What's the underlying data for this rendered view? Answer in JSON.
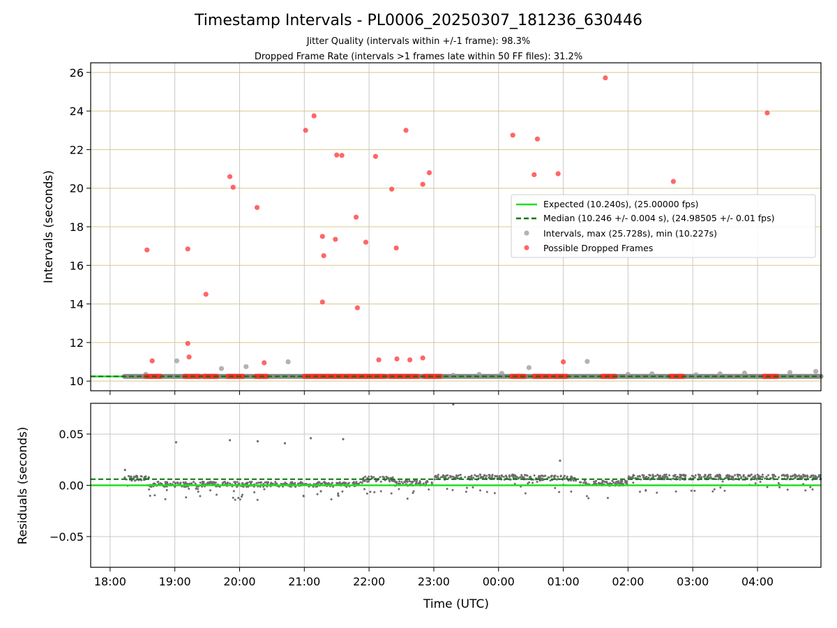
{
  "chart_data": [
    {
      "type": "scatter",
      "title": "Timestamp Intervals - PL0006_20250307_181236_630446",
      "subtitle_lines": [
        "Jitter Quality (intervals within +/-1 frame): 98.3%",
        "Dropped Frame Rate (intervals >1 frames late within 50 FF files): 31.2%"
      ],
      "ylabel": "Intervals (seconds)",
      "xlim_hours": [
        17.7,
        28.98
      ],
      "ylim": [
        9.5,
        26.5
      ],
      "yticks": [
        10,
        12,
        14,
        16,
        18,
        20,
        22,
        24,
        26
      ],
      "ytick_labels": [
        "10",
        "12",
        "14",
        "16",
        "18",
        "20",
        "22",
        "24",
        "26"
      ],
      "grid": true,
      "y_gridline_color": "#d8c88c",
      "legend_position": "center-right",
      "legend": [
        {
          "label": "Expected (10.240s), (25.00000 fps)",
          "kind": "solid-line",
          "color": "#22dd22"
        },
        {
          "label": "Median (10.246 +/- 0.004 s), (24.98505 +/- 0.01 fps)",
          "kind": "dashed-line",
          "color": "#007700"
        },
        {
          "label": "Intervals, max (25.728s), min (10.227s)",
          "kind": "marker",
          "color": "#999999"
        },
        {
          "label": "Possible Dropped Frames",
          "kind": "marker",
          "color": "#ff4040"
        }
      ],
      "expected_interval": 10.24,
      "median_interval": 10.246,
      "interval_line_range_hours": [
        18.22,
        28.98
      ],
      "dropped_frames": [
        [
          18.57,
          16.8
        ],
        [
          18.65,
          11.05
        ],
        [
          19.2,
          16.85
        ],
        [
          19.2,
          11.95
        ],
        [
          19.22,
          11.25
        ],
        [
          19.48,
          14.5
        ],
        [
          19.85,
          20.6
        ],
        [
          19.9,
          20.05
        ],
        [
          20.27,
          19.0
        ],
        [
          20.38,
          10.95
        ],
        [
          21.02,
          23.0
        ],
        [
          21.15,
          23.75
        ],
        [
          21.28,
          17.5
        ],
        [
          21.3,
          16.5
        ],
        [
          21.28,
          14.1
        ],
        [
          21.48,
          17.35
        ],
        [
          21.5,
          21.72
        ],
        [
          21.58,
          21.7
        ],
        [
          21.8,
          18.5
        ],
        [
          21.82,
          13.8
        ],
        [
          21.95,
          17.2
        ],
        [
          22.1,
          21.65
        ],
        [
          22.15,
          11.1
        ],
        [
          22.35,
          19.95
        ],
        [
          22.42,
          16.9
        ],
        [
          22.43,
          11.15
        ],
        [
          22.57,
          23.0
        ],
        [
          22.63,
          11.1
        ],
        [
          22.83,
          20.2
        ],
        [
          22.83,
          11.2
        ],
        [
          22.93,
          20.8
        ],
        [
          24.22,
          22.75
        ],
        [
          24.55,
          20.7
        ],
        [
          24.6,
          22.55
        ],
        [
          24.92,
          20.75
        ],
        [
          25.0,
          11.0
        ],
        [
          25.65,
          25.72
        ],
        [
          26.7,
          20.35
        ],
        [
          28.15,
          23.9
        ]
      ],
      "dropped_cluster_ranges_hours": [
        [
          18.55,
          18.78
        ],
        [
          19.15,
          19.38
        ],
        [
          19.45,
          19.65
        ],
        [
          19.82,
          20.05
        ],
        [
          20.25,
          20.42
        ],
        [
          21.0,
          21.95
        ],
        [
          21.95,
          22.25
        ],
        [
          22.32,
          22.75
        ],
        [
          22.85,
          23.1
        ],
        [
          24.2,
          24.4
        ],
        [
          24.55,
          24.8
        ],
        [
          24.85,
          25.05
        ],
        [
          25.6,
          25.8
        ],
        [
          26.65,
          26.85
        ],
        [
          28.1,
          28.3
        ]
      ],
      "gray_outliers": [
        [
          18.55,
          10.35
        ],
        [
          19.03,
          11.05
        ],
        [
          19.72,
          10.65
        ],
        [
          20.1,
          10.75
        ],
        [
          20.75,
          11.0
        ],
        [
          23.3,
          10.3
        ],
        [
          23.7,
          10.35
        ],
        [
          24.05,
          10.4
        ],
        [
          24.47,
          10.7
        ],
        [
          25.37,
          11.02
        ],
        [
          26.0,
          10.35
        ],
        [
          26.37,
          10.38
        ],
        [
          27.05,
          10.33
        ],
        [
          27.42,
          10.38
        ],
        [
          27.8,
          10.42
        ],
        [
          28.5,
          10.45
        ],
        [
          28.9,
          10.5
        ]
      ]
    },
    {
      "type": "scatter",
      "xlabel": "Time (UTC)",
      "ylabel": "Residuals (seconds)",
      "xlim_hours": [
        17.7,
        28.98
      ],
      "ylim": [
        -0.08,
        0.08
      ],
      "yticks": [
        -0.05,
        0.0,
        0.05
      ],
      "ytick_labels": [
        "−0.05",
        "0.00",
        "0.05"
      ],
      "xticks_hours": [
        18,
        19,
        20,
        21,
        22,
        23,
        24,
        25,
        26,
        27,
        28
      ],
      "xtick_labels": [
        "18:00",
        "19:00",
        "20:00",
        "21:00",
        "22:00",
        "23:00",
        "00:00",
        "01:00",
        "02:00",
        "03:00",
        "04:00"
      ],
      "grid": true,
      "expected_residual": 0.0,
      "median_residual": 0.006,
      "residual_outliers": [
        [
          18.23,
          0.015
        ],
        [
          19.02,
          0.042
        ],
        [
          19.85,
          0.044
        ],
        [
          20.28,
          0.043
        ],
        [
          20.7,
          0.041
        ],
        [
          21.1,
          0.046
        ],
        [
          21.6,
          0.045
        ],
        [
          23.3,
          0.079
        ],
        [
          24.95,
          0.024
        ]
      ],
      "residual_levels": [
        {
          "range_hours": [
            18.22,
            18.6
          ],
          "level": 0.007
        },
        {
          "range_hours": [
            18.6,
            21.9
          ],
          "level": 0.001
        },
        {
          "range_hours": [
            21.9,
            22.4
          ],
          "level": 0.006
        },
        {
          "range_hours": [
            22.4,
            23.0
          ],
          "level": 0.002
        },
        {
          "range_hours": [
            23.0,
            24.6
          ],
          "level": 0.008
        },
        {
          "range_hours": [
            24.6,
            25.2
          ],
          "level": 0.007
        },
        {
          "range_hours": [
            25.2,
            26.0
          ],
          "level": 0.002
        },
        {
          "range_hours": [
            26.0,
            28.98
          ],
          "level": 0.008
        }
      ]
    }
  ]
}
